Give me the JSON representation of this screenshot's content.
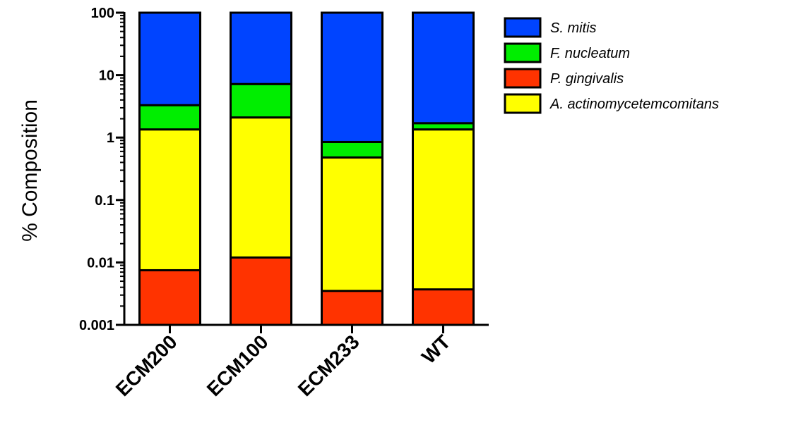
{
  "chart_data": {
    "type": "bar",
    "stacked": true,
    "yscale": "log",
    "ylabel": "% Composition",
    "ylim": [
      0.001,
      100
    ],
    "yticks": [
      "0.001",
      "0.01",
      "0.1",
      "1",
      "10",
      "100"
    ],
    "categories": [
      "ECM200",
      "ECM100",
      "ECM233",
      "WT"
    ],
    "series": [
      {
        "name": "A. actinomycetemcomitans",
        "color": "#ffff00",
        "lower": [
          0.001,
          0.001,
          0.001,
          0.001
        ],
        "upper": [
          1.35,
          2.1,
          0.48,
          1.35
        ]
      },
      {
        "name": "P. gingivalis",
        "color": "#ff3300",
        "lower": [
          0.001,
          0.001,
          0.001,
          0.001
        ],
        "upper": [
          0.0075,
          0.012,
          0.0035,
          0.0037
        ]
      },
      {
        "name": "F. nucleatum",
        "color": "#00ee00",
        "lower": [
          1.35,
          2.1,
          0.48,
          1.35
        ],
        "upper": [
          3.3,
          7.2,
          0.85,
          1.7
        ]
      },
      {
        "name": "S. mitis",
        "color": "#0044ff",
        "lower": [
          3.3,
          7.2,
          0.85,
          1.7
        ],
        "upper": [
          100,
          100,
          100,
          100
        ]
      }
    ],
    "legend": {
      "placement": "top-right",
      "order": [
        "S. mitis",
        "F. nucleatum",
        "P. gingivalis",
        "A. actinomycetemcomitans"
      ]
    }
  }
}
